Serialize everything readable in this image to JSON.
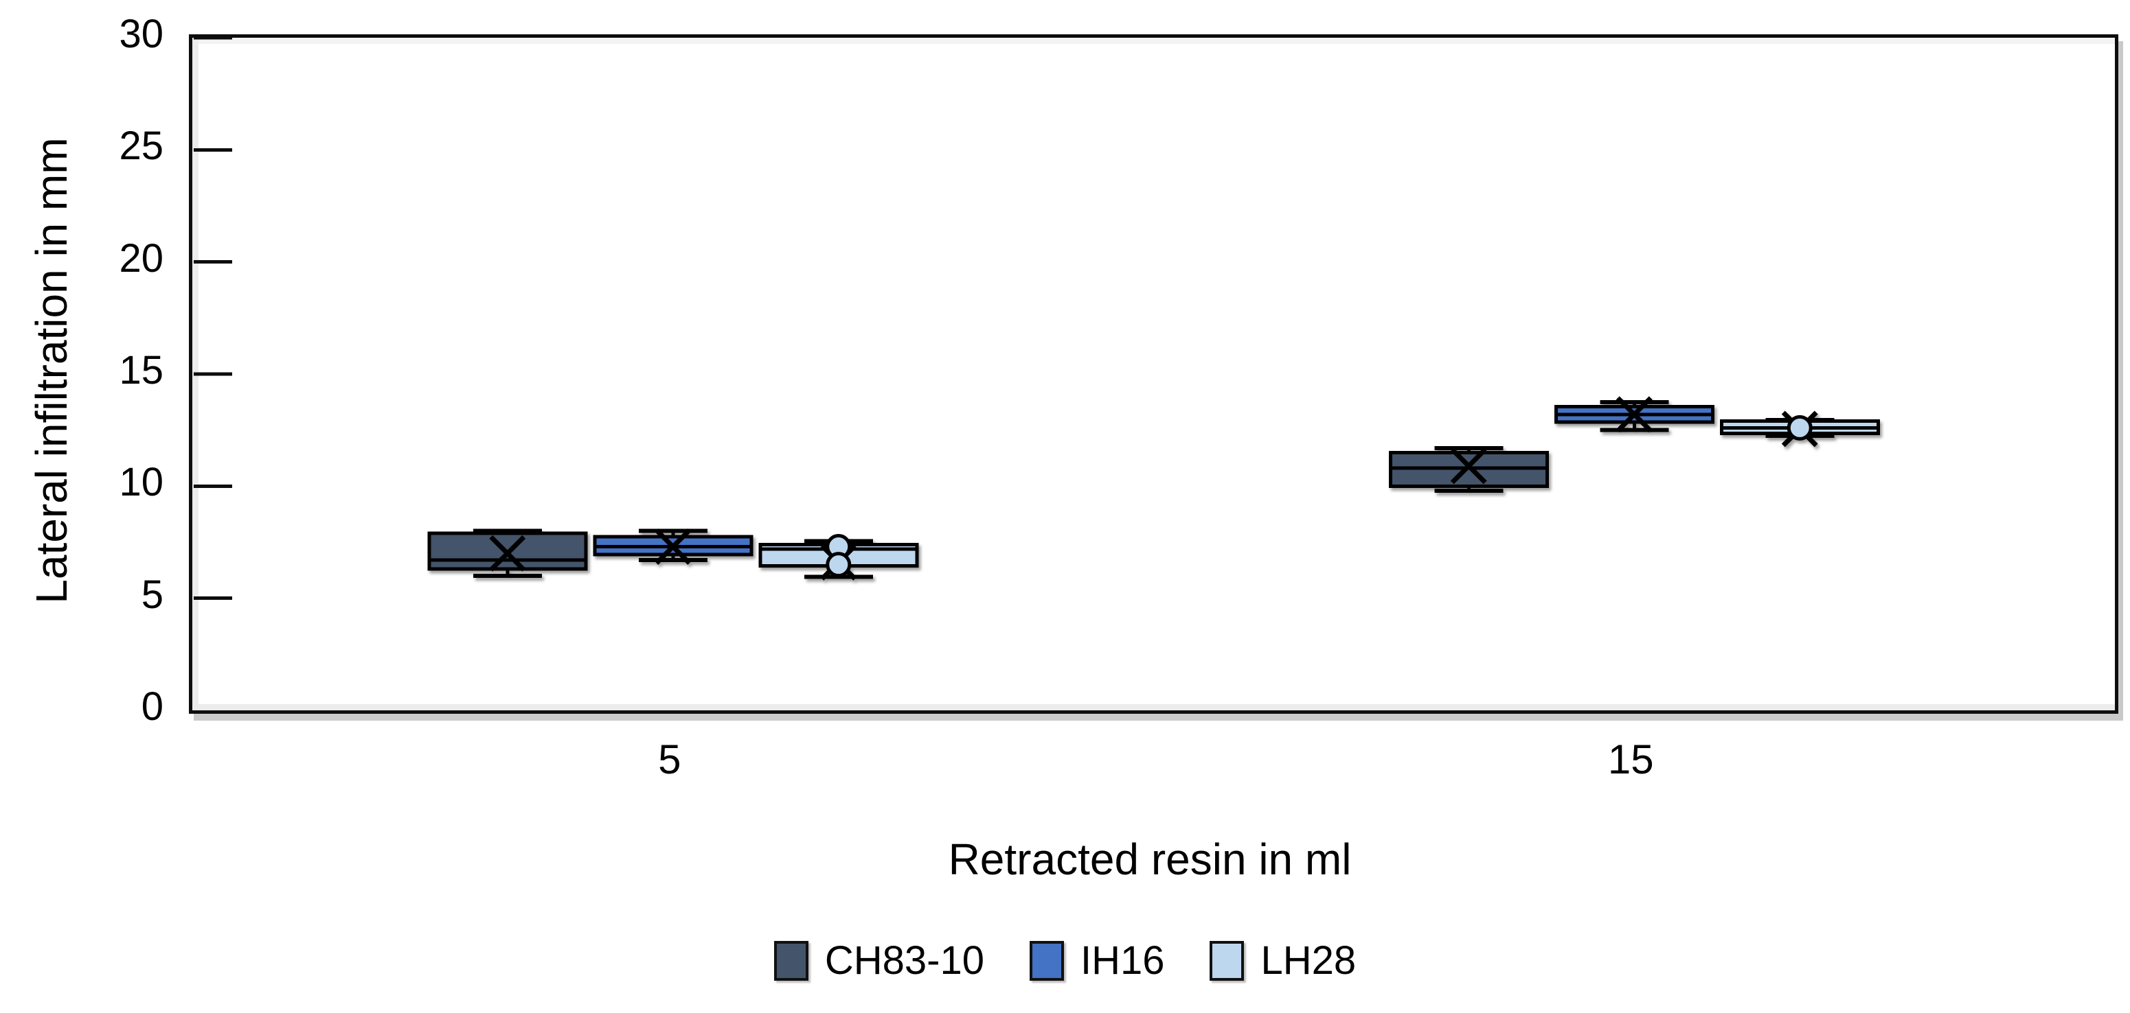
{
  "figure": {
    "background_color": "#ffffff",
    "frame_color": "#0d0d0d"
  },
  "chart_data": {
    "type": "boxplot",
    "title": "",
    "xlabel": "Retracted resin in ml",
    "ylabel": "Lateral infiltration in mm",
    "categories": [
      "5",
      "15"
    ],
    "ylim": [
      0,
      30
    ],
    "yticks": [
      0,
      5,
      10,
      15,
      20,
      25,
      30
    ],
    "grid": false,
    "legend_position": "bottom-center",
    "marker_notes": "x-marker = mean, circle-marker = outlier point",
    "series": [
      {
        "name": "CH83-10",
        "color": "#44546A",
        "boxes": [
          {
            "category": "5",
            "whisker_low": 6.0,
            "q1": 6.3,
            "median": 6.7,
            "q3": 7.9,
            "whisker_high": 8.0,
            "mean": 7.0,
            "outliers": []
          },
          {
            "category": "15",
            "whisker_low": 9.8,
            "q1": 10.0,
            "median": 10.8,
            "q3": 11.5,
            "whisker_high": 11.7,
            "mean": 10.9,
            "outliers": []
          }
        ]
      },
      {
        "name": "IH16",
        "color": "#4472C4",
        "boxes": [
          {
            "category": "5",
            "whisker_low": 6.7,
            "q1": 6.95,
            "median": 7.3,
            "q3": 7.75,
            "whisker_high": 8.0,
            "mean": 7.3,
            "outliers": []
          },
          {
            "category": "15",
            "whisker_low": 12.5,
            "q1": 12.85,
            "median": 13.2,
            "q3": 13.55,
            "whisker_high": 13.75,
            "mean": 13.2,
            "outliers": []
          }
        ]
      },
      {
        "name": "LH28",
        "color": "#BDD7EE",
        "boxes": [
          {
            "category": "5",
            "whisker_low": 5.95,
            "q1": 6.45,
            "median": 7.2,
            "q3": 7.4,
            "whisker_high": 7.55,
            "mean": 6.6,
            "outliers": [
              7.3,
              6.5
            ]
          },
          {
            "category": "15",
            "whisker_low": 12.25,
            "q1": 12.35,
            "median": 12.6,
            "q3": 12.9,
            "whisker_high": 12.95,
            "mean": 12.55,
            "outliers": [
              12.6
            ]
          }
        ]
      }
    ]
  },
  "legend": {
    "items": [
      {
        "label": "CH83-10",
        "color": "#44546A"
      },
      {
        "label": "IH16",
        "color": "#4472C4"
      },
      {
        "label": "LH28",
        "color": "#BDD7EE"
      }
    ]
  }
}
